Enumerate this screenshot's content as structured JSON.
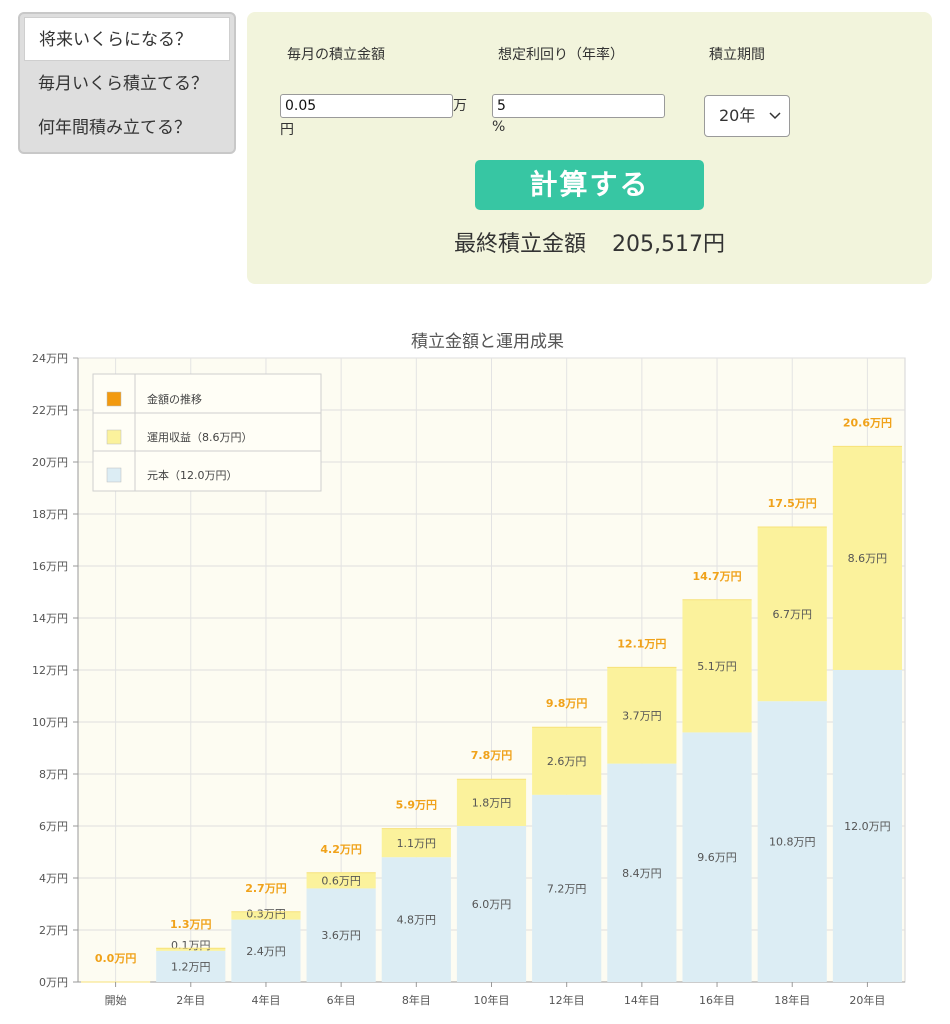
{
  "mode_tabs": [
    "将来いくらになる？",
    "毎月いくら積立てる？",
    "何年間積み立てる？"
  ],
  "form": {
    "monthly_label": "毎月の積立金額",
    "monthly_value": "0.05",
    "monthly_unit_a": "万",
    "monthly_unit_b": "円",
    "rate_label": "想定利回り（年率）",
    "rate_value": "5",
    "rate_unit": "%",
    "period_label": "積立期間",
    "period_value": "20年",
    "calc_button": "計算する",
    "result_label": "最終積立金額",
    "result_value": "205,517円"
  },
  "colors": {
    "principal": "#dcedf4",
    "profit": "#fbf29c",
    "trend": "#f29a0f",
    "total_label": "#f0a21a"
  },
  "chart_data": {
    "type": "bar",
    "title": "積立金額と運用成果",
    "categories": [
      "開始",
      "2年目",
      "4年目",
      "6年目",
      "8年目",
      "10年目",
      "12年目",
      "14年目",
      "16年目",
      "18年目",
      "20年目"
    ],
    "series": [
      {
        "name": "元本（12.0万円）",
        "values": [
          0,
          1.2,
          2.4,
          3.6,
          4.8,
          6.0,
          7.2,
          8.4,
          9.6,
          10.8,
          12.0
        ],
        "labels": [
          "",
          "1.2万円",
          "2.4万円",
          "3.6万円",
          "4.8万円",
          "6.0万円",
          "7.2万円",
          "8.4万円",
          "9.6万円",
          "10.8万円",
          "12.0万円"
        ]
      },
      {
        "name": "運用収益（8.6万円）",
        "values": [
          0,
          0.1,
          0.3,
          0.6,
          1.1,
          1.8,
          2.6,
          3.7,
          5.1,
          6.7,
          8.6
        ],
        "labels": [
          "",
          "0.1万円",
          "0.3万円",
          "0.6万円",
          "1.1万円",
          "1.8万円",
          "2.6万円",
          "3.7万円",
          "5.1万円",
          "6.7万円",
          "8.6万円"
        ]
      }
    ],
    "totals": [
      0.0,
      1.3,
      2.7,
      4.2,
      5.9,
      7.8,
      9.8,
      12.1,
      14.7,
      17.5,
      20.6
    ],
    "total_labels": [
      "0.0万円",
      "1.3万円",
      "2.7万円",
      "4.2万円",
      "5.9万円",
      "7.8万円",
      "9.8万円",
      "12.1万円",
      "14.7万円",
      "17.5万円",
      "20.6万円"
    ],
    "legend": [
      "金額の推移",
      "運用収益（8.6万円）",
      "元本（12.0万円）"
    ],
    "legend_position": "top-left",
    "ylim": [
      0,
      24
    ],
    "yticks": [
      0,
      2,
      4,
      6,
      8,
      10,
      12,
      14,
      16,
      18,
      20,
      22,
      24
    ],
    "ytick_labels": [
      "0万円",
      "2万円",
      "4万円",
      "6万円",
      "8万円",
      "10万円",
      "12万円",
      "14万円",
      "16万円",
      "18万円",
      "20万円",
      "22万円",
      "24万円"
    ],
    "grid": true,
    "stacked": true
  }
}
